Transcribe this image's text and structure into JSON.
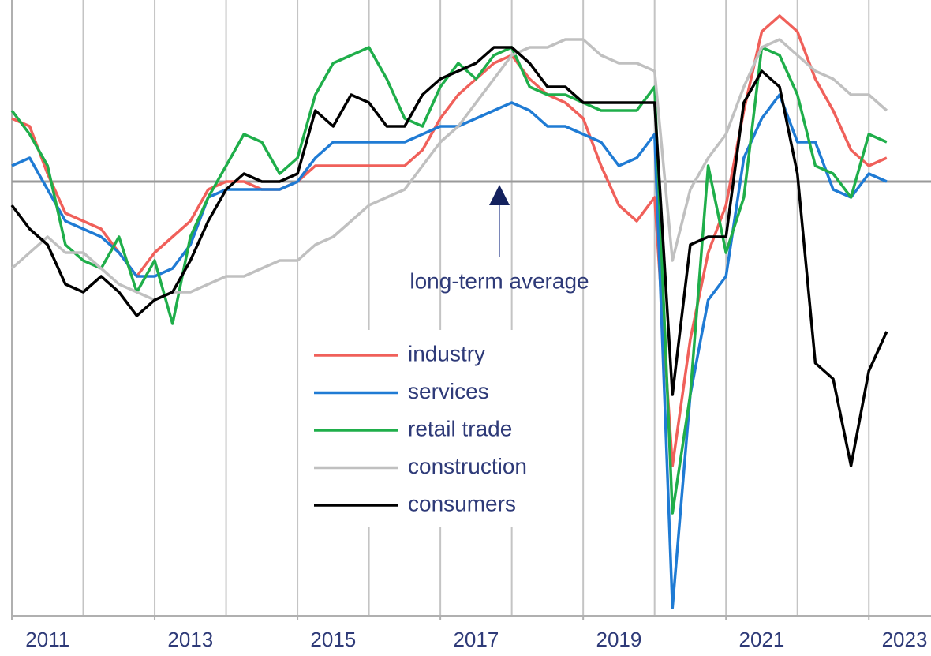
{
  "chart_data": {
    "type": "line",
    "x": [
      2011,
      2011.25,
      2011.5,
      2011.75,
      2012,
      2012.25,
      2012.5,
      2012.75,
      2013,
      2013.25,
      2013.5,
      2013.75,
      2014,
      2014.25,
      2014.5,
      2014.75,
      2015,
      2015.25,
      2015.5,
      2015.75,
      2016,
      2016.25,
      2016.5,
      2016.75,
      2017,
      2017.25,
      2017.5,
      2017.75,
      2018,
      2018.25,
      2018.5,
      2018.75,
      2019,
      2019.25,
      2019.5,
      2019.75,
      2020,
      2020.25,
      2020.5,
      2020.75,
      2021,
      2021.25,
      2021.5,
      2021.75,
      2022,
      2022.25,
      2022.5,
      2022.75,
      2023,
      2023.25
    ],
    "series": [
      {
        "name": "industry",
        "color": "#f0605a",
        "values": [
          0.8,
          0.7,
          0.1,
          -0.4,
          -0.5,
          -0.6,
          -0.9,
          -1.2,
          -0.9,
          -0.7,
          -0.5,
          -0.1,
          0.0,
          0.0,
          -0.1,
          -0.1,
          0.0,
          0.2,
          0.2,
          0.2,
          0.2,
          0.2,
          0.2,
          0.4,
          0.8,
          1.1,
          1.3,
          1.5,
          1.6,
          1.3,
          1.1,
          1.0,
          0.8,
          0.2,
          -0.3,
          -0.5,
          -0.2,
          -3.6,
          -2.0,
          -0.9,
          -0.3,
          0.9,
          1.9,
          2.1,
          1.9,
          1.3,
          0.9,
          0.4,
          0.2,
          0.3
        ]
      },
      {
        "name": "services",
        "color": "#1f7bd4",
        "values": [
          0.2,
          0.3,
          -0.1,
          -0.5,
          -0.6,
          -0.7,
          -0.9,
          -1.2,
          -1.2,
          -1.1,
          -0.8,
          -0.2,
          -0.1,
          -0.1,
          -0.1,
          -0.1,
          0.0,
          0.3,
          0.5,
          0.5,
          0.5,
          0.5,
          0.5,
          0.6,
          0.7,
          0.7,
          0.8,
          0.9,
          1.0,
          0.9,
          0.7,
          0.7,
          0.6,
          0.5,
          0.2,
          0.3,
          0.6,
          -5.4,
          -2.7,
          -1.5,
          -1.2,
          0.3,
          0.8,
          1.1,
          0.5,
          0.5,
          -0.1,
          -0.2,
          0.1,
          0.0
        ]
      },
      {
        "name": "retail trade",
        "color": "#1fae4a",
        "values": [
          0.9,
          0.6,
          0.2,
          -0.8,
          -1.0,
          -1.1,
          -0.7,
          -1.4,
          -1.0,
          -1.8,
          -0.7,
          -0.2,
          0.2,
          0.6,
          0.5,
          0.1,
          0.3,
          1.1,
          1.5,
          1.6,
          1.7,
          1.3,
          0.8,
          0.7,
          1.2,
          1.5,
          1.3,
          1.6,
          1.7,
          1.2,
          1.1,
          1.1,
          1.0,
          0.9,
          0.9,
          0.9,
          1.2,
          -4.2,
          -2.7,
          0.2,
          -0.9,
          -0.2,
          1.7,
          1.6,
          1.1,
          0.2,
          0.1,
          -0.2,
          0.6,
          0.5
        ]
      },
      {
        "name": "construction",
        "color": "#c0c0c0",
        "values": [
          -1.1,
          -0.9,
          -0.7,
          -0.9,
          -0.9,
          -1.1,
          -1.3,
          -1.4,
          -1.5,
          -1.4,
          -1.4,
          -1.3,
          -1.2,
          -1.2,
          -1.1,
          -1.0,
          -1.0,
          -0.8,
          -0.7,
          -0.5,
          -0.3,
          -0.2,
          -0.1,
          0.2,
          0.5,
          0.7,
          1.0,
          1.3,
          1.6,
          1.7,
          1.7,
          1.8,
          1.8,
          1.6,
          1.5,
          1.5,
          1.4,
          -1.0,
          -0.1,
          0.3,
          0.6,
          1.2,
          1.7,
          1.8,
          1.6,
          1.4,
          1.3,
          1.1,
          1.1,
          0.9
        ]
      },
      {
        "name": "consumers",
        "color": "#000000",
        "values": [
          -0.3,
          -0.6,
          -0.8,
          -1.3,
          -1.4,
          -1.2,
          -1.4,
          -1.7,
          -1.5,
          -1.4,
          -1.0,
          -0.5,
          -0.1,
          0.1,
          0.0,
          0.0,
          0.1,
          0.9,
          0.7,
          1.1,
          1.0,
          0.7,
          0.7,
          1.1,
          1.3,
          1.4,
          1.5,
          1.7,
          1.7,
          1.5,
          1.2,
          1.2,
          1.0,
          1.0,
          1.0,
          1.0,
          1.0,
          -2.7,
          -0.8,
          -0.7,
          -0.7,
          1.0,
          1.4,
          1.2,
          0.1,
          -2.3,
          -2.5,
          -3.6,
          -2.4,
          -1.9
        ]
      }
    ],
    "xlim": [
      2011,
      2023.87
    ],
    "xticks": [
      2011,
      2013,
      2015,
      2017,
      2019,
      2021,
      2023
    ],
    "xgrid": [
      2012,
      2013,
      2014,
      2015,
      2016,
      2017,
      2018,
      2019,
      2020,
      2021,
      2022,
      2023
    ],
    "ylim": [
      -5.5,
      2.3
    ],
    "reference_line": 0,
    "annotation": "long-term average",
    "legend": "center",
    "grid": true
  }
}
